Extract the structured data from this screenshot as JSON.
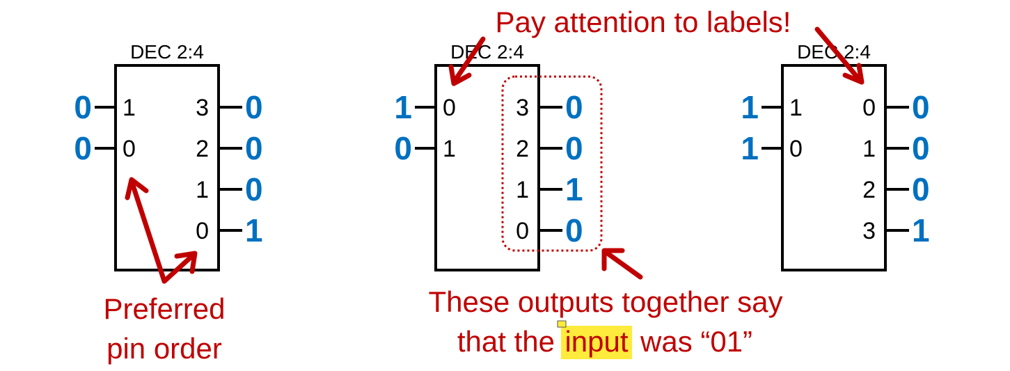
{
  "decoders": [
    {
      "title": "DEC 2:4",
      "inputs": [
        {
          "pin": "1",
          "bit": "0"
        },
        {
          "pin": "0",
          "bit": "0"
        }
      ],
      "outputs": [
        {
          "pin": "3",
          "bit": "0"
        },
        {
          "pin": "2",
          "bit": "0"
        },
        {
          "pin": "1",
          "bit": "0"
        },
        {
          "pin": "0",
          "bit": "1"
        }
      ]
    },
    {
      "title": "DEC 2:4",
      "inputs": [
        {
          "pin": "0",
          "bit": "1"
        },
        {
          "pin": "1",
          "bit": "0"
        }
      ],
      "outputs": [
        {
          "pin": "3",
          "bit": "0"
        },
        {
          "pin": "2",
          "bit": "0"
        },
        {
          "pin": "1",
          "bit": "1"
        },
        {
          "pin": "0",
          "bit": "0"
        }
      ]
    },
    {
      "title": "DEC 2:4",
      "inputs": [
        {
          "pin": "1",
          "bit": "1"
        },
        {
          "pin": "0",
          "bit": "1"
        }
      ],
      "outputs": [
        {
          "pin": "0",
          "bit": "0"
        },
        {
          "pin": "1",
          "bit": "0"
        },
        {
          "pin": "2",
          "bit": "0"
        },
        {
          "pin": "3",
          "bit": "1"
        }
      ]
    }
  ],
  "annotations": {
    "pay_attention": "Pay attention to labels!",
    "preferred_line1": "Preferred",
    "preferred_line2": "pin order",
    "outputs_line1": "These outputs together say",
    "outputs_line2_before": "that the",
    "outputs_line2_highlight": "input",
    "outputs_line2_after": "was “01”"
  },
  "colors": {
    "bit": "#0070c0",
    "annotation": "#c00000",
    "highlight": "#ffeb3b"
  }
}
